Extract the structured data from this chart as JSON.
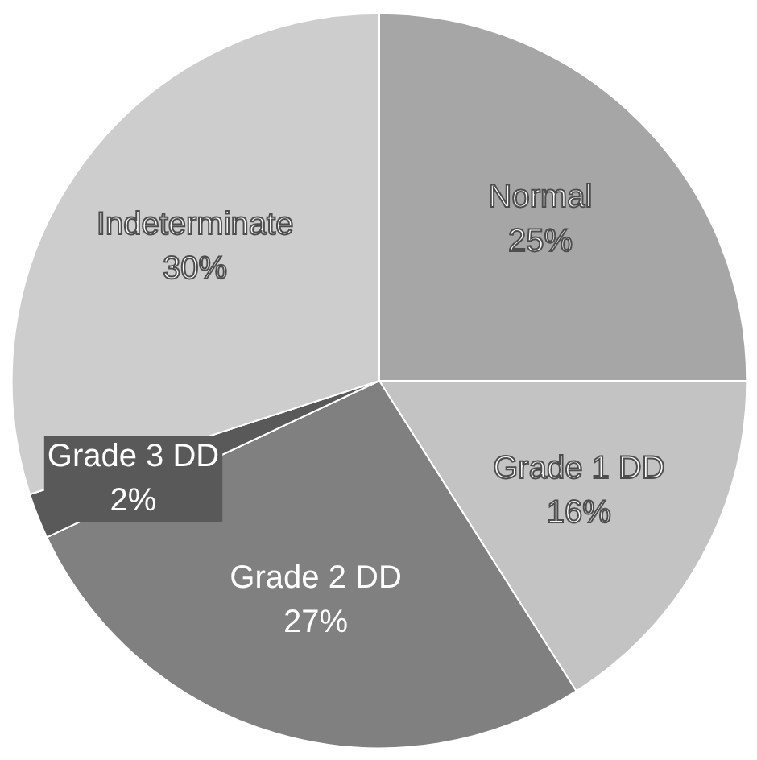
{
  "chart_data": {
    "type": "pie",
    "categories": [
      "Normal",
      "Grade 1 DD",
      "Grade 2 DD",
      "Grade 3 DD",
      "Indeterminate"
    ],
    "values": [
      25,
      16,
      27,
      2,
      30
    ],
    "colors": [
      "#a6a6a6",
      "#c3c3c3",
      "#808080",
      "#595959",
      "#cdcdcd"
    ],
    "value_labels": [
      "25%",
      "16%",
      "27%",
      "2%",
      "30%"
    ],
    "data_labels": true
  }
}
